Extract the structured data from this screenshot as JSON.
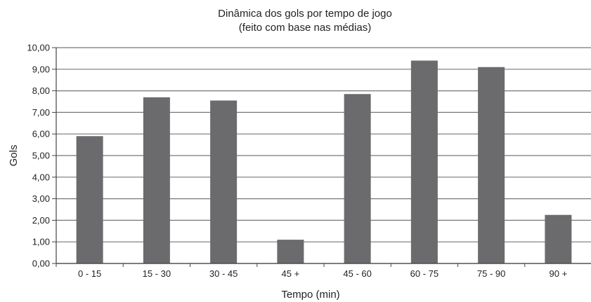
{
  "chart_data": {
    "type": "bar",
    "title": "Dinâmica dos gols por tempo de jogo",
    "subtitle": "(feito com base nas médias)",
    "xlabel": "Tempo (min)",
    "ylabel": "Gols",
    "categories": [
      "0 - 15",
      "15 - 30",
      "30 - 45",
      "45 +",
      "45 - 60",
      "60 - 75",
      "75 - 90",
      "90 +"
    ],
    "values": [
      5.9,
      7.7,
      7.55,
      1.1,
      7.85,
      9.4,
      9.1,
      2.25
    ],
    "ylim": [
      0,
      10
    ],
    "yticks": [
      "0,00",
      "1,00",
      "2,00",
      "3,00",
      "4,00",
      "5,00",
      "6,00",
      "7,00",
      "8,00",
      "9,00",
      "10,00"
    ],
    "grid": true,
    "bar_color": "#6b6b6e",
    "grid_color": "#777777"
  }
}
